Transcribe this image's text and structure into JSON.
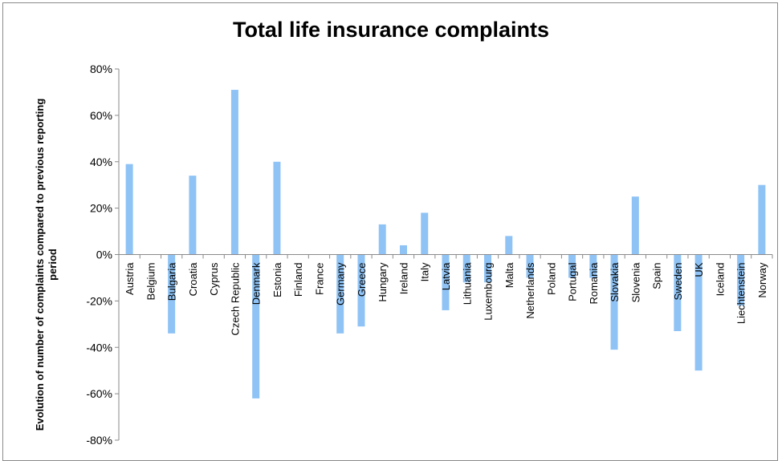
{
  "chart_data": {
    "type": "bar",
    "title": "Total life insurance complaints",
    "xlabel": "",
    "ylabel": "Evolution of number of complaints compared to previous reporting period",
    "ylim": [
      -0.8,
      0.8
    ],
    "yticks": [
      "80%",
      "60%",
      "40%",
      "20%",
      "0%",
      "-20%",
      "-40%",
      "-60%",
      "-80%"
    ],
    "categories": [
      "Austria",
      "Belgium",
      "Bulgaria",
      "Croatia",
      "Cyprus",
      "Czech Republic",
      "Denmark",
      "Estonia",
      "Finland",
      "France",
      "Germany",
      "Greece",
      "Hungary",
      "Ireland",
      "Italy",
      "Latvia",
      "Lithuania",
      "Luxembourg",
      "Malta",
      "Netherlands",
      "Poland",
      "Portugal",
      "Romania",
      "Slovakia",
      "Slovenia",
      "Spain",
      "Sweden",
      "UK",
      "Iceland",
      "Liechtenstein",
      "Norway"
    ],
    "values": [
      0.39,
      0.0,
      -0.34,
      0.34,
      0.0,
      0.71,
      -0.62,
      0.4,
      0.0,
      0.0,
      -0.34,
      -0.31,
      0.13,
      0.04,
      0.18,
      -0.24,
      -0.12,
      -0.12,
      0.08,
      -0.1,
      0.0,
      -0.1,
      -0.1,
      -0.41,
      0.25,
      0.0,
      -0.33,
      -0.5,
      0.0,
      -0.22,
      0.3
    ],
    "grid": false,
    "legend": "none",
    "bar_color": "#8fc3f5"
  }
}
